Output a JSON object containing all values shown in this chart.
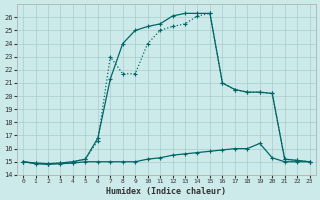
{
  "xlabel": "Humidex (Indice chaleur)",
  "bg_color": "#cceaea",
  "grid_color": "#aacccc",
  "line_color": "#006666",
  "xlim": [
    -0.5,
    23.5
  ],
  "ylim": [
    14.0,
    27.0
  ],
  "yticks": [
    14,
    15,
    16,
    17,
    18,
    19,
    20,
    21,
    22,
    23,
    24,
    25,
    26
  ],
  "xticks": [
    0,
    1,
    2,
    3,
    4,
    5,
    6,
    7,
    8,
    9,
    10,
    11,
    12,
    13,
    14,
    15,
    16,
    17,
    18,
    19,
    20,
    21,
    22,
    23
  ],
  "line_upper_x": [
    0,
    1,
    2,
    3,
    4,
    5,
    6,
    7,
    8,
    9,
    10,
    11,
    12,
    13,
    14,
    15,
    16,
    17,
    18,
    19,
    20,
    21,
    22,
    23
  ],
  "line_upper_y": [
    15.0,
    14.9,
    14.85,
    14.9,
    15.0,
    15.2,
    16.8,
    21.3,
    24.0,
    25.0,
    25.3,
    25.5,
    26.1,
    26.3,
    26.3,
    26.3,
    21.0,
    20.5,
    20.3,
    20.3,
    20.2,
    15.2,
    15.1,
    15.0
  ],
  "line_mid_x": [
    0,
    1,
    2,
    3,
    4,
    5,
    6,
    7,
    8,
    9,
    10,
    11,
    12,
    13,
    14,
    15,
    16,
    17,
    18,
    19,
    20,
    21,
    22,
    23
  ],
  "line_mid_y": [
    15.0,
    14.9,
    14.85,
    14.9,
    15.0,
    15.2,
    16.6,
    23.0,
    21.7,
    21.7,
    24.0,
    25.0,
    25.3,
    25.5,
    26.1,
    26.3,
    21.0,
    20.5,
    20.3,
    20.3,
    20.2,
    15.2,
    15.1,
    15.0
  ],
  "line_low_x": [
    0,
    1,
    2,
    3,
    4,
    5,
    6,
    7,
    8,
    9,
    10,
    11,
    12,
    13,
    14,
    15,
    16,
    17,
    18,
    19,
    20,
    21,
    22,
    23
  ],
  "line_low_y": [
    15.0,
    14.85,
    14.8,
    14.85,
    14.9,
    15.0,
    15.0,
    15.0,
    15.0,
    15.0,
    15.2,
    15.3,
    15.5,
    15.6,
    15.7,
    15.8,
    15.9,
    16.0,
    16.0,
    16.4,
    15.3,
    15.0,
    15.0,
    15.0
  ]
}
